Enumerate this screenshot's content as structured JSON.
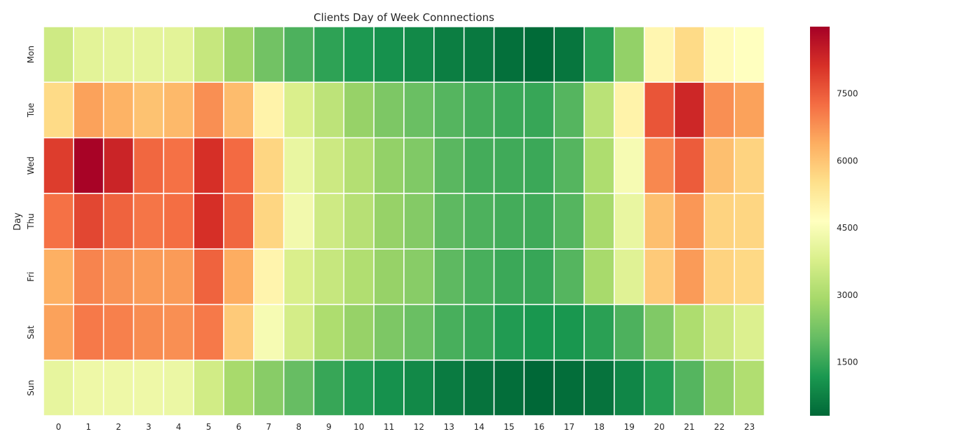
{
  "chart_data": {
    "type": "heatmap",
    "title": "Clients Day of Week Connnections",
    "xlabel": "",
    "ylabel": "Day",
    "x": [
      "0",
      "1",
      "2",
      "3",
      "4",
      "5",
      "6",
      "7",
      "8",
      "9",
      "10",
      "11",
      "12",
      "13",
      "14",
      "15",
      "16",
      "17",
      "18",
      "19",
      "20",
      "21",
      "22",
      "23"
    ],
    "y": [
      "Mon",
      "Tue",
      "Wed",
      "Thu",
      "Fri",
      "Sat",
      "Sun"
    ],
    "values": [
      [
        3600,
        4000,
        4050,
        4050,
        4000,
        3450,
        2800,
        2200,
        1750,
        1400,
        1200,
        1050,
        900,
        700,
        600,
        450,
        350,
        550,
        1350,
        2650,
        4900,
        5600,
        4750,
        4650
      ],
      [
        5600,
        6550,
        6300,
        6050,
        6200,
        6800,
        6150,
        5000,
        3800,
        3300,
        2700,
        2350,
        2100,
        1850,
        1650,
        1550,
        1500,
        1850,
        3250,
        5000,
        7600,
        8300,
        6800,
        6550
      ],
      [
        7950,
        8950,
        8350,
        7350,
        7200,
        8150,
        7300,
        5700,
        4150,
        3550,
        3150,
        2650,
        2400,
        1900,
        1650,
        1600,
        1550,
        1850,
        3050,
        4450,
        6900,
        7500,
        6100,
        5750
      ],
      [
        7200,
        7800,
        7400,
        7150,
        7250,
        8150,
        7350,
        5700,
        4350,
        3600,
        3200,
        2700,
        2450,
        1950,
        1750,
        1650,
        1600,
        1850,
        2950,
        4150,
        6100,
        6700,
        5750,
        5700
      ],
      [
        6350,
        6950,
        6750,
        6650,
        6650,
        7400,
        6400,
        4950,
        3800,
        3450,
        3100,
        2700,
        2500,
        1950,
        1700,
        1550,
        1500,
        1850,
        2950,
        3950,
        5900,
        6650,
        5750,
        5650
      ],
      [
        6550,
        7100,
        7000,
        6850,
        6800,
        7100,
        5900,
        4450,
        3700,
        3050,
        2700,
        2350,
        2100,
        1700,
        1500,
        1250,
        1150,
        1150,
        1350,
        1750,
        2400,
        3050,
        3550,
        3850
      ],
      [
        4100,
        4250,
        4250,
        4250,
        4200,
        3650,
        2950,
        2500,
        2050,
        1500,
        1250,
        1050,
        900,
        650,
        500,
        400,
        300,
        400,
        500,
        850,
        1300,
        1850,
        2650,
        3100
      ]
    ],
    "colorbar": {
      "ticks": [
        "1500",
        "3000",
        "4500",
        "6000",
        "7500"
      ],
      "min": 300,
      "max": 9000,
      "colormap": "RdYlGn_r"
    }
  },
  "colors": {
    "scale": [
      "#006837",
      "#1a9850",
      "#66bd63",
      "#a6d96a",
      "#d9ef8b",
      "#ffffbf",
      "#fee08b",
      "#fdae61",
      "#f46d43",
      "#d73027",
      "#a50026"
    ],
    "cell_border": "#ffffff",
    "text": "#262626"
  }
}
